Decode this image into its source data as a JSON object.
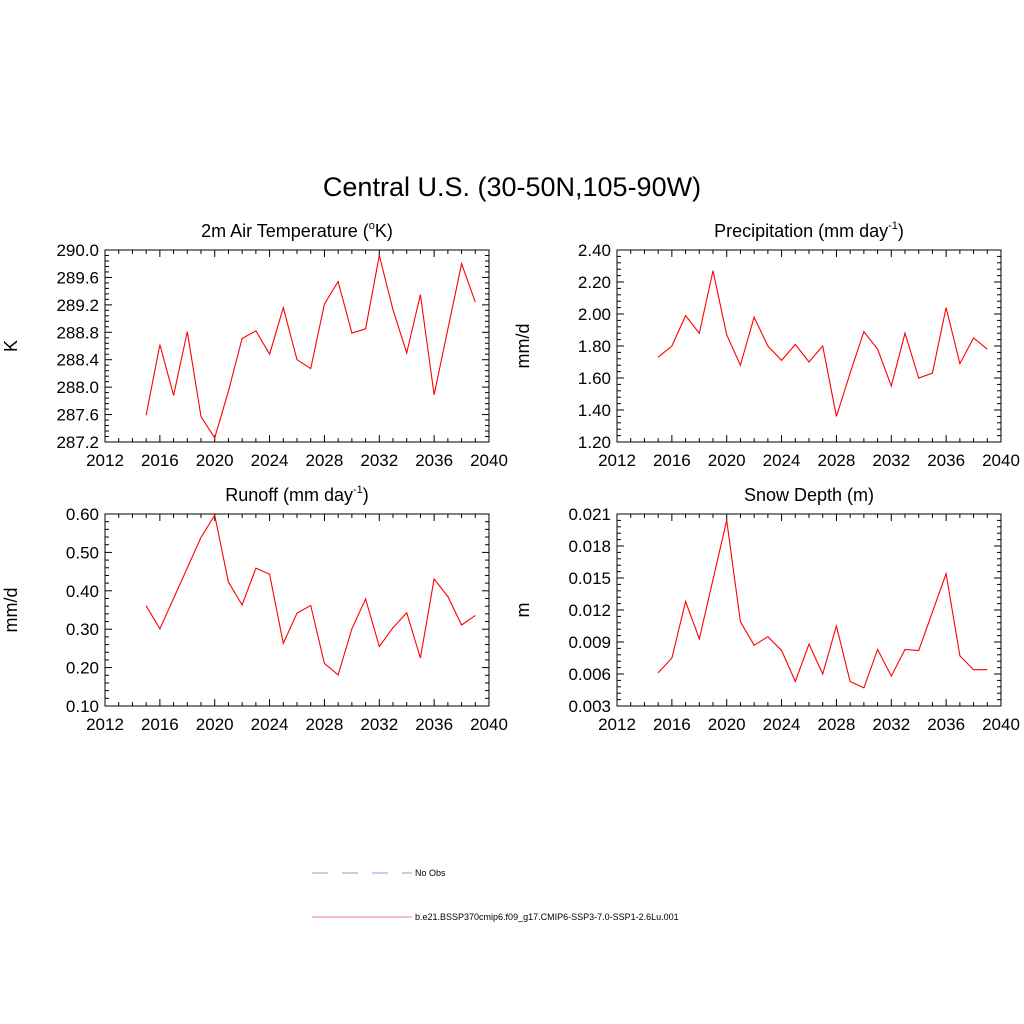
{
  "figure": {
    "main_title": "Central U.S. (30-50N,105-90W)"
  },
  "legend": [
    {
      "label": "No Obs",
      "style": "dashed",
      "color": "#9a9ad8"
    },
    {
      "label": "b.e21.BSSP370cmip6.f09_g17.CMIP6-SSP3-7.0-SSP1-2.6Lu.001",
      "style": "solid",
      "color": "#f08080"
    }
  ],
  "chart_data": [
    {
      "type": "line",
      "title": "2m Air Temperature (",
      "title_sup": "o",
      "title_after": "K)",
      "title_end": "",
      "ylabel": "K",
      "xlim": [
        2012,
        2040
      ],
      "ylim": [
        287.2,
        290.0
      ],
      "xticks": [
        2012,
        2016,
        2020,
        2024,
        2028,
        2032,
        2036,
        2040
      ],
      "yticks": [
        "287.2",
        "287.6",
        "288.0",
        "288.4",
        "288.8",
        "289.2",
        "289.6",
        "290.0"
      ],
      "series": [
        {
          "color": "#ff0000",
          "x": [
            2015,
            2016,
            2017,
            2018,
            2019,
            2020,
            2021,
            2022,
            2023,
            2024,
            2025,
            2026,
            2027,
            2028,
            2029,
            2030,
            2031,
            2032,
            2033,
            2034,
            2035,
            2036,
            2037,
            2038,
            2039
          ],
          "y": [
            287.59,
            288.62,
            287.88,
            288.81,
            287.57,
            287.26,
            287.94,
            288.71,
            288.82,
            288.48,
            289.16,
            288.4,
            288.27,
            289.21,
            289.54,
            288.79,
            288.85,
            289.92,
            289.13,
            288.5,
            289.35,
            287.89,
            288.85,
            289.8,
            289.24
          ]
        }
      ]
    },
    {
      "type": "line",
      "title": "Precipitation (mm day",
      "title_sup": "-1",
      "title_after": ")",
      "title_end": "",
      "ylabel": "mm/d",
      "xlim": [
        2012,
        2040
      ],
      "ylim": [
        1.2,
        2.4
      ],
      "xticks": [
        2012,
        2016,
        2020,
        2024,
        2028,
        2032,
        2036,
        2040
      ],
      "yticks": [
        "1.20",
        "1.40",
        "1.60",
        "1.80",
        "2.00",
        "2.20",
        "2.40"
      ],
      "series": [
        {
          "color": "#ff0000",
          "x": [
            2015,
            2016,
            2017,
            2018,
            2019,
            2020,
            2021,
            2022,
            2023,
            2024,
            2025,
            2026,
            2027,
            2028,
            2029,
            2030,
            2031,
            2032,
            2033,
            2034,
            2035,
            2036,
            2037,
            2038,
            2039
          ],
          "y": [
            1.73,
            1.8,
            1.99,
            1.88,
            2.27,
            1.87,
            1.68,
            1.98,
            1.8,
            1.71,
            1.81,
            1.7,
            1.8,
            1.36,
            1.63,
            1.89,
            1.78,
            1.55,
            1.88,
            1.6,
            1.63,
            2.04,
            1.69,
            1.85,
            1.78
          ]
        }
      ]
    },
    {
      "type": "line",
      "title": "Runoff (mm day",
      "title_sup": "-1",
      "title_after": ")",
      "title_end": "",
      "ylabel": "mm/d",
      "xlim": [
        2012,
        2040
      ],
      "ylim": [
        0.1,
        0.6
      ],
      "xticks": [
        2012,
        2016,
        2020,
        2024,
        2028,
        2032,
        2036,
        2040
      ],
      "yticks": [
        "0.10",
        "0.20",
        "0.30",
        "0.40",
        "0.50",
        "0.60"
      ],
      "series": [
        {
          "color": "#ff0000",
          "x": [
            2015,
            2016,
            2019,
            2020,
            2021,
            2022,
            2023,
            2024,
            2025,
            2026,
            2027,
            2028,
            2029,
            2030,
            2031,
            2032,
            2033,
            2034,
            2035,
            2036,
            2037,
            2038,
            2039
          ],
          "y": [
            0.361,
            0.301,
            0.539,
            0.597,
            0.423,
            0.363,
            0.459,
            0.443,
            0.263,
            0.342,
            0.362,
            0.211,
            0.181,
            0.301,
            0.379,
            0.255,
            0.304,
            0.343,
            0.225,
            0.431,
            0.385,
            0.311,
            0.336
          ]
        }
      ]
    },
    {
      "type": "line",
      "title": "Snow Depth (m)",
      "title_sup": "",
      "title_after": "",
      "title_end": "",
      "ylabel": "m",
      "xlim": [
        2012,
        2040
      ],
      "ylim": [
        0.003,
        0.021
      ],
      "xticks": [
        2012,
        2016,
        2020,
        2024,
        2028,
        2032,
        2036,
        2040
      ],
      "yticks": [
        "0.003",
        "0.006",
        "0.009",
        "0.012",
        "0.015",
        "0.018",
        "0.021"
      ],
      "series": [
        {
          "color": "#ff0000",
          "x": [
            2015,
            2016,
            2017,
            2018,
            2020,
            2021,
            2022,
            2023,
            2024,
            2025,
            2026,
            2027,
            2028,
            2029,
            2030,
            2031,
            2032,
            2033,
            2034,
            2036,
            2037,
            2038,
            2039
          ],
          "y": [
            0.0061,
            0.0075,
            0.0128,
            0.0093,
            0.0204,
            0.0109,
            0.0087,
            0.0095,
            0.0082,
            0.0053,
            0.0088,
            0.006,
            0.0105,
            0.0053,
            0.0047,
            0.0083,
            0.0058,
            0.0083,
            0.0082,
            0.0154,
            0.0077,
            0.0064,
            0.0064
          ]
        }
      ]
    }
  ]
}
